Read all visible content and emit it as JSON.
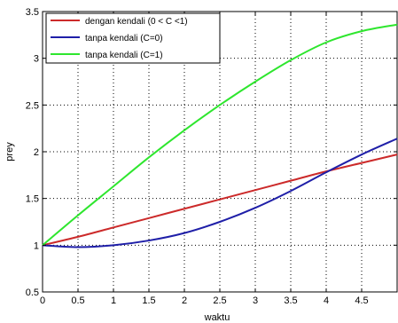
{
  "chart_data": {
    "type": "line",
    "title": "",
    "xlabel": "waktu",
    "ylabel": "prey",
    "xlim": [
      0,
      5
    ],
    "ylim": [
      0.5,
      3.5
    ],
    "xticks": [
      0,
      0.5,
      1,
      1.5,
      2,
      2.5,
      3,
      3.5,
      4,
      4.5
    ],
    "xtick_labels": [
      "0",
      "0.5",
      "1",
      "1.5",
      "2",
      "2.5",
      "3",
      "3.5",
      "4",
      "4.5"
    ],
    "yticks": [
      0.5,
      1,
      1.5,
      2,
      2.5,
      3,
      3.5
    ],
    "ytick_labels": [
      "0.5",
      "1",
      "1.5",
      "2",
      "2.5",
      "3",
      "3.5"
    ],
    "grid": true,
    "legend_position": "top-left",
    "x": [
      0,
      0.5,
      1,
      1.5,
      2,
      2.5,
      3,
      3.5,
      4,
      4.5,
      5
    ],
    "series": [
      {
        "name": "dengan kendali (0 < C <1)",
        "color": "#cc2a2a",
        "values": [
          1.0,
          1.09,
          1.19,
          1.29,
          1.39,
          1.49,
          1.59,
          1.69,
          1.79,
          1.88,
          1.97
        ]
      },
      {
        "name": "tanpa kendali (C=0)",
        "color": "#1f1fa8",
        "values": [
          1.0,
          0.98,
          1.0,
          1.05,
          1.13,
          1.25,
          1.4,
          1.58,
          1.78,
          1.97,
          2.14
        ]
      },
      {
        "name": "tanpa kendali (C=1)",
        "color": "#2ee62e",
        "values": [
          1.0,
          1.32,
          1.63,
          1.94,
          2.23,
          2.5,
          2.75,
          2.98,
          3.17,
          3.29,
          3.36
        ]
      }
    ]
  }
}
